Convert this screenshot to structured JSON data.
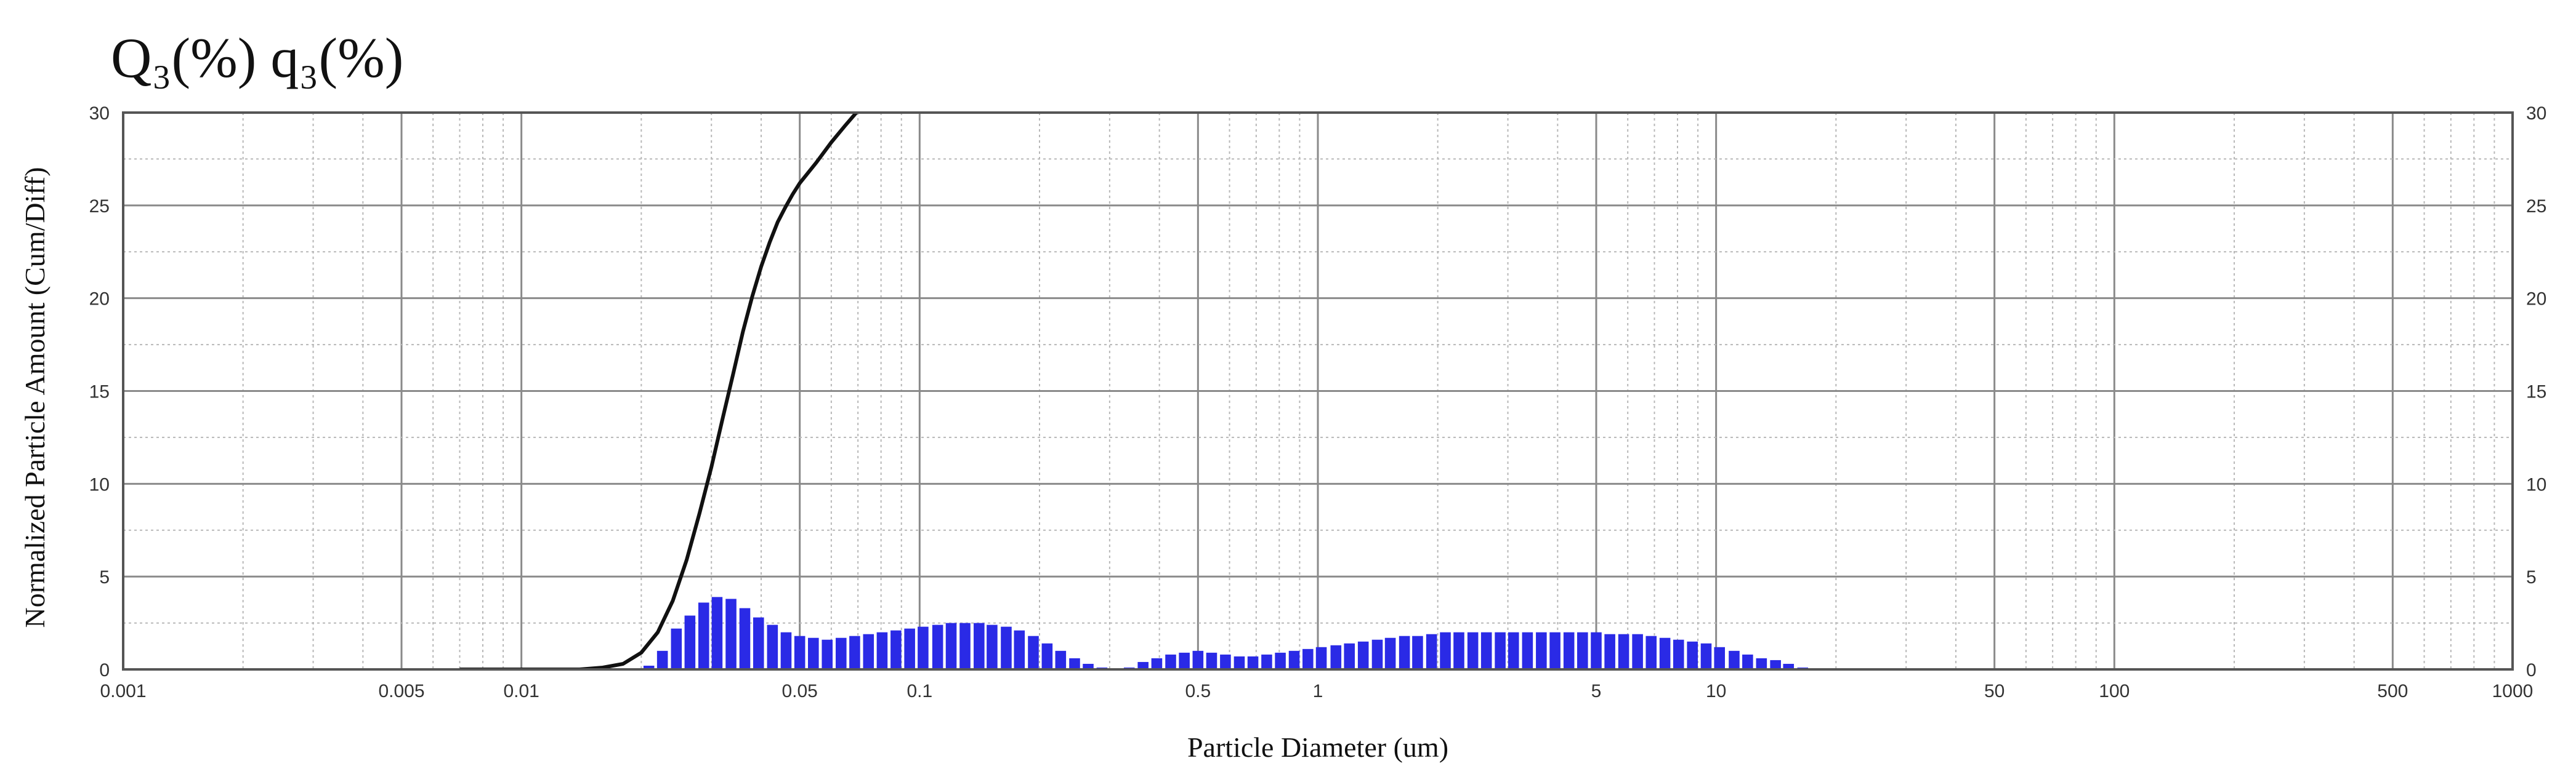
{
  "chart_data": {
    "type": "bar",
    "title": "Q₃(%) q₃(%)",
    "xlabel": "Particle Diameter (um)",
    "ylabel": "Normalized Particle Amount (Cum/Diff)",
    "x_scale": "log",
    "xlim": [
      0.001,
      1000
    ],
    "ylim": [
      0,
      30
    ],
    "x_ticks": [
      {
        "value": 0.001,
        "label": "0.001"
      },
      {
        "value": 0.005,
        "label": "0.005"
      },
      {
        "value": 0.01,
        "label": "0.01"
      },
      {
        "value": 0.05,
        "label": "0.05"
      },
      {
        "value": 0.1,
        "label": "0.1"
      },
      {
        "value": 0.5,
        "label": "0.5"
      },
      {
        "value": 1,
        "label": "1"
      },
      {
        "value": 5,
        "label": "5"
      },
      {
        "value": 10,
        "label": "10"
      },
      {
        "value": 50,
        "label": "50"
      },
      {
        "value": 100,
        "label": "100"
      },
      {
        "value": 500,
        "label": "500"
      },
      {
        "value": 1000,
        "label": "1000"
      }
    ],
    "y_ticks": [
      {
        "value": 0,
        "label": "0"
      },
      {
        "value": 5,
        "label": "5"
      },
      {
        "value": 10,
        "label": "10"
      },
      {
        "value": 15,
        "label": "15"
      },
      {
        "value": 20,
        "label": "20"
      },
      {
        "value": 25,
        "label": "25"
      },
      {
        "value": 30,
        "label": "30"
      }
    ],
    "grid": true,
    "series": [
      {
        "kind": "bar",
        "color": "#2a2ae6",
        "x": [
          0.0209,
          0.0226,
          0.0245,
          0.0265,
          0.0287,
          0.031,
          0.0336,
          0.0364,
          0.0394,
          0.0427,
          0.0462,
          0.05,
          0.0541,
          0.0586,
          0.0635,
          0.0687,
          0.0744,
          0.0805,
          0.0872,
          0.0944,
          0.102,
          0.111,
          0.12,
          0.13,
          0.141,
          0.152,
          0.165,
          0.178,
          0.193,
          0.209,
          0.226,
          0.245,
          0.265,
          0.287,
          0.31,
          0.336,
          0.364,
          0.394,
          0.427,
          0.462,
          0.5,
          0.541,
          0.586,
          0.635,
          0.687,
          0.744,
          0.805,
          0.872,
          0.944,
          1.02,
          1.11,
          1.2,
          1.3,
          1.41,
          1.52,
          1.65,
          1.78,
          1.93,
          2.09,
          2.26,
          2.45,
          2.65,
          2.87,
          3.1,
          3.36,
          3.64,
          3.94,
          4.27,
          4.62,
          5.0,
          5.41,
          5.86,
          6.35,
          6.87,
          7.44,
          8.05,
          8.72,
          9.44,
          10.2,
          11.1,
          12.0,
          13.0,
          14.1,
          15.2,
          16.5
        ],
        "values": [
          0.2,
          1.0,
          2.2,
          2.9,
          3.6,
          3.9,
          3.8,
          3.3,
          2.8,
          2.4,
          2.0,
          1.8,
          1.7,
          1.6,
          1.7,
          1.8,
          1.9,
          2.0,
          2.1,
          2.2,
          2.3,
          2.4,
          2.5,
          2.5,
          2.5,
          2.4,
          2.3,
          2.1,
          1.8,
          1.4,
          1.0,
          0.6,
          0.3,
          0.1,
          0.0,
          0.1,
          0.4,
          0.6,
          0.8,
          0.9,
          1.0,
          0.9,
          0.8,
          0.7,
          0.7,
          0.8,
          0.9,
          1.0,
          1.1,
          1.2,
          1.3,
          1.4,
          1.5,
          1.6,
          1.7,
          1.8,
          1.8,
          1.9,
          2.0,
          2.0,
          2.0,
          2.0,
          2.0,
          2.0,
          2.0,
          2.0,
          2.0,
          2.0,
          2.0,
          2.0,
          1.9,
          1.9,
          1.9,
          1.8,
          1.7,
          1.6,
          1.5,
          1.4,
          1.2,
          1.0,
          0.8,
          0.6,
          0.5,
          0.3,
          0.1
        ]
      },
      {
        "kind": "line",
        "color": "#111111",
        "x": [
          0.007,
          0.008,
          0.009,
          0.01,
          0.012,
          0.014,
          0.016,
          0.018,
          0.02,
          0.022,
          0.024,
          0.026,
          0.028,
          0.03,
          0.032,
          0.034,
          0.036,
          0.038,
          0.04,
          0.042,
          0.044,
          0.046,
          0.048,
          0.05,
          0.055,
          0.06,
          0.065,
          0.07,
          0.075
        ],
        "values": [
          0,
          0,
          0,
          0,
          0,
          0,
          0.1,
          0.3,
          0.9,
          2.0,
          3.7,
          5.9,
          8.4,
          10.9,
          13.5,
          15.9,
          18.2,
          20.1,
          21.7,
          23.0,
          24.1,
          24.9,
          25.6,
          26.2,
          27.3,
          28.4,
          29.3,
          30.1,
          30.8
        ]
      }
    ]
  }
}
